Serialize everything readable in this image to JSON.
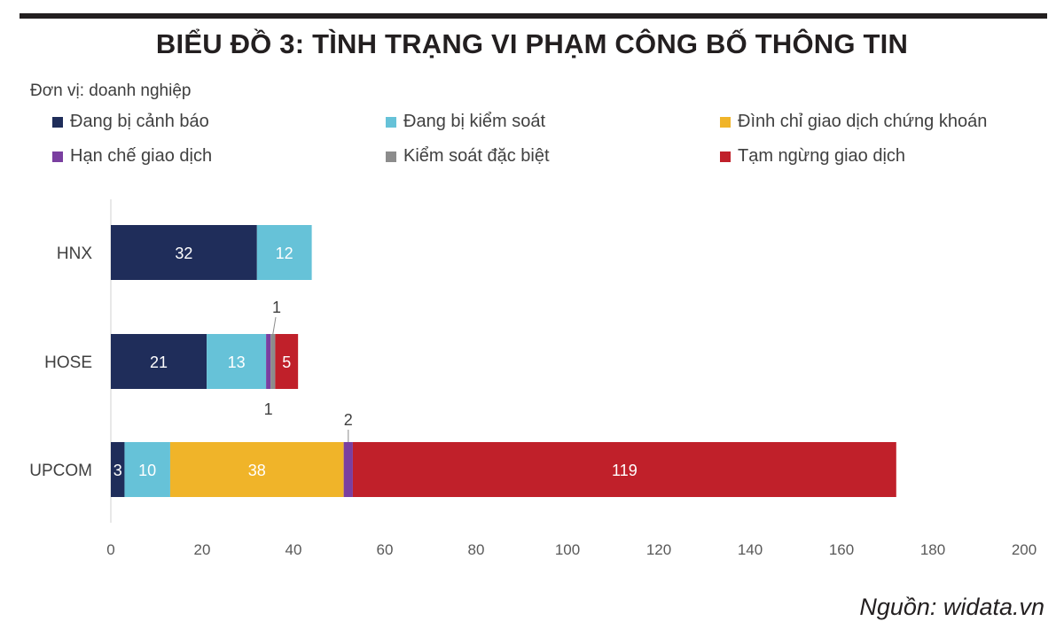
{
  "title": "BIỂU ĐỒ 3: TÌNH TRẠNG VI PHẠM CÔNG BỐ THÔNG TIN",
  "unit_label": "Đơn vị: doanh nghiệp",
  "source": "Nguồn: widata.vn",
  "chart_data": {
    "type": "bar",
    "orientation": "horizontal",
    "stacked": true,
    "categories": [
      "HNX",
      "HOSE",
      "UPCOM"
    ],
    "series": [
      {
        "name": "Đang bị cảnh báo",
        "color": "#1f2d5a",
        "values": [
          32,
          21,
          3
        ]
      },
      {
        "name": "Đang bị kiểm soát",
        "color": "#66c2d8",
        "values": [
          12,
          13,
          10
        ]
      },
      {
        "name": "Đình chỉ giao dịch chứng khoán",
        "color": "#f0b429",
        "values": [
          0,
          0,
          38
        ]
      },
      {
        "name": "Hạn chế giao dịch",
        "color": "#7a3fa0",
        "values": [
          0,
          1,
          2
        ]
      },
      {
        "name": "Kiểm soát đặc biệt",
        "color": "#8c8c8c",
        "values": [
          0,
          1,
          0
        ]
      },
      {
        "name": "Tạm ngừng giao dịch",
        "color": "#c0202a",
        "values": [
          0,
          5,
          119
        ]
      }
    ],
    "xlim": [
      0,
      200
    ],
    "xticks": [
      0,
      20,
      40,
      60,
      80,
      100,
      120,
      140,
      160,
      180,
      200
    ],
    "legend_position": "top",
    "grid": false
  }
}
